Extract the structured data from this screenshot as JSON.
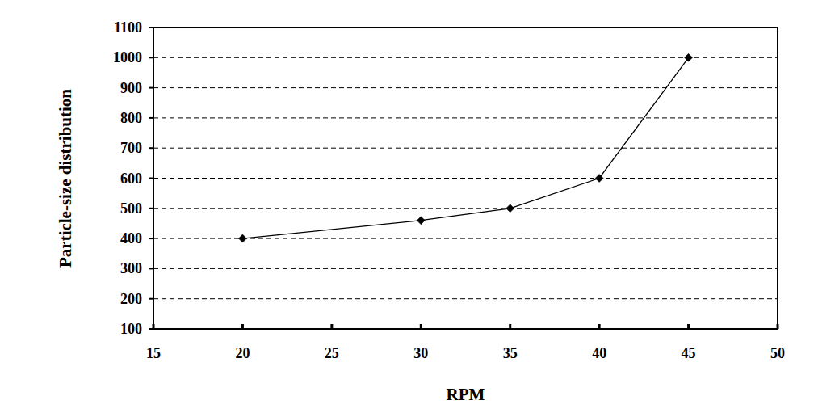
{
  "chart_data": {
    "type": "line",
    "x_label": "RPM",
    "y_label": "Particle-size distribution",
    "x": [
      20,
      30,
      35,
      40,
      45
    ],
    "values": [
      400,
      460,
      500,
      600,
      1000
    ],
    "color": "#000000",
    "marker": "diamond",
    "line_style": "solid",
    "xlim": [
      15,
      50
    ],
    "xticks": [
      15,
      20,
      25,
      30,
      35,
      40,
      45,
      50
    ],
    "ylim": [
      100,
      1100
    ],
    "yticks": [
      100,
      200,
      300,
      400,
      500,
      600,
      700,
      800,
      900,
      1000,
      1100
    ],
    "grid": true
  }
}
